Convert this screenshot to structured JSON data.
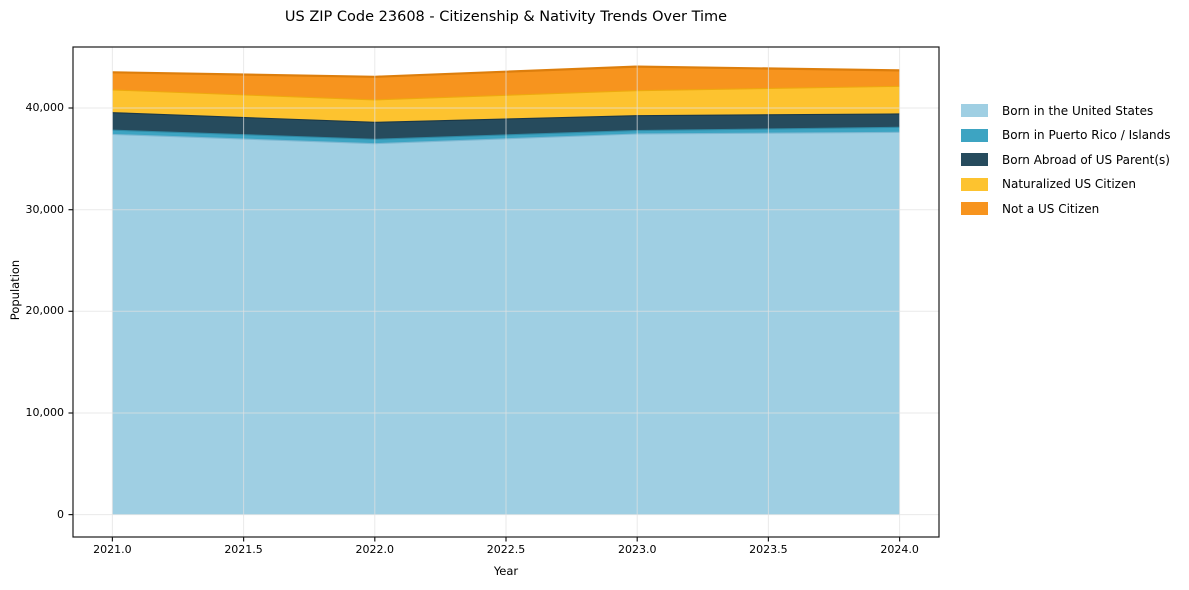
{
  "figure": {
    "background": "#ffffff",
    "axis_color": "#1a1a1a",
    "grid_color": "rgba(225,225,225,0.7)"
  },
  "chart_data": {
    "type": "area",
    "stacked": true,
    "title": "US ZIP Code 23608 - Citizenship & Nativity Trends Over Time",
    "xlabel": "Year",
    "ylabel": "Population",
    "x": [
      2021,
      2022,
      2023,
      2024
    ],
    "series": [
      {
        "name": "Born in the United States",
        "color": "#9FCFE3",
        "edge": "#7CB8D2",
        "values": [
          37450,
          36550,
          37500,
          37660
        ]
      },
      {
        "name": "Born in Puerto Rico / Islands",
        "color": "#3DA4C2",
        "edge": "#2F89A4",
        "values": [
          420,
          430,
          340,
          490
        ]
      },
      {
        "name": "Born Abroad of US Parent(s)",
        "color": "#264B5D",
        "edge": "#1B3847",
        "values": [
          1730,
          1660,
          1460,
          1320
        ]
      },
      {
        "name": "Naturalized US Citizen",
        "color": "#FDC32F",
        "edge": "#EEA90E",
        "values": [
          2230,
          2210,
          2460,
          2715
        ]
      },
      {
        "name": "Not a US Citizen",
        "color": "#F7941E",
        "edge": "#DD7E0C",
        "values": [
          1680,
          2220,
          2310,
          1515
        ]
      }
    ],
    "stacked_totals": [
      43510,
      43070,
      44070,
      43700
    ],
    "xlim": [
      2020.85,
      2024.15
    ],
    "ylim": [
      -2200,
      46000
    ],
    "x_ticks": [
      {
        "value": 2021.0,
        "label": "2021.0"
      },
      {
        "value": 2021.5,
        "label": "2021.5"
      },
      {
        "value": 2022.0,
        "label": "2022.0"
      },
      {
        "value": 2022.5,
        "label": "2022.5"
      },
      {
        "value": 2023.0,
        "label": "2023.0"
      },
      {
        "value": 2023.5,
        "label": "2023.5"
      },
      {
        "value": 2024.0,
        "label": "2024.0"
      }
    ],
    "y_ticks": [
      {
        "value": 0,
        "label": "0"
      },
      {
        "value": 10000,
        "label": "10,000"
      },
      {
        "value": 20000,
        "label": "20,000"
      },
      {
        "value": 30000,
        "label": "30,000"
      },
      {
        "value": 40000,
        "label": "40,000"
      }
    ],
    "grid": true,
    "legend_position": "right-outside-upper"
  }
}
